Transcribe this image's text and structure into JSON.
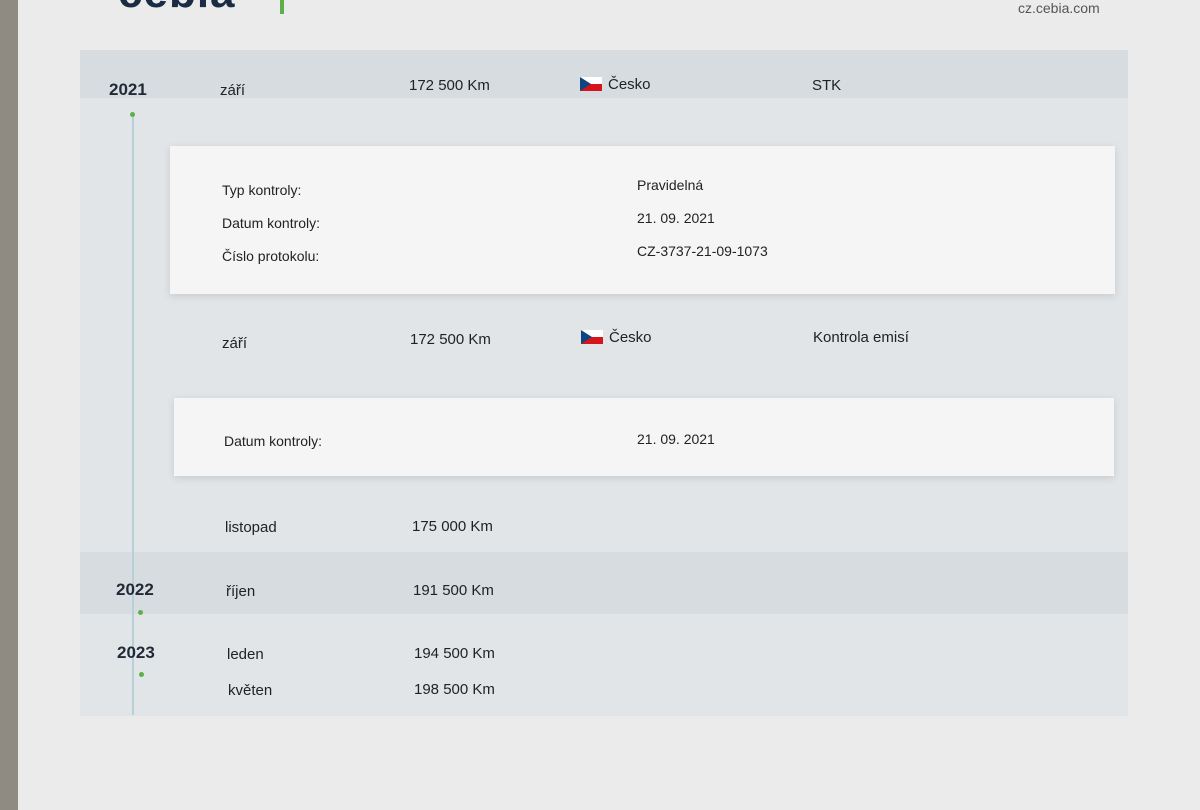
{
  "header": {
    "logo": "cebia",
    "url": "cz.cebia.com"
  },
  "rows": [
    {
      "year": "2021",
      "month": "září",
      "km": "172 500 Km",
      "country": "Česko",
      "type": "STK",
      "details": [
        {
          "label": "Typ kontroly:",
          "value": "Pravidelná"
        },
        {
          "label": "Datum kontroly:",
          "value": "21. 09. 2021"
        },
        {
          "label": "Číslo protokolu:",
          "value": "CZ-3737-21-09-1073"
        }
      ]
    },
    {
      "month": "září",
      "km": "172 500 Km",
      "country": "Česko",
      "type": "Kontrola emisí",
      "details": [
        {
          "label": "Datum kontroly:",
          "value": "21. 09. 2021"
        }
      ]
    },
    {
      "month": "listopad",
      "km": "175 000 Km"
    },
    {
      "year": "2022",
      "month": "říjen",
      "km": "191 500 Km"
    },
    {
      "year": "2023",
      "month": "leden",
      "km": "194 500 Km"
    },
    {
      "month": "květen",
      "km": "198 500 Km"
    }
  ],
  "colors": {
    "accent": "#5bb04a",
    "text": "#222222"
  }
}
